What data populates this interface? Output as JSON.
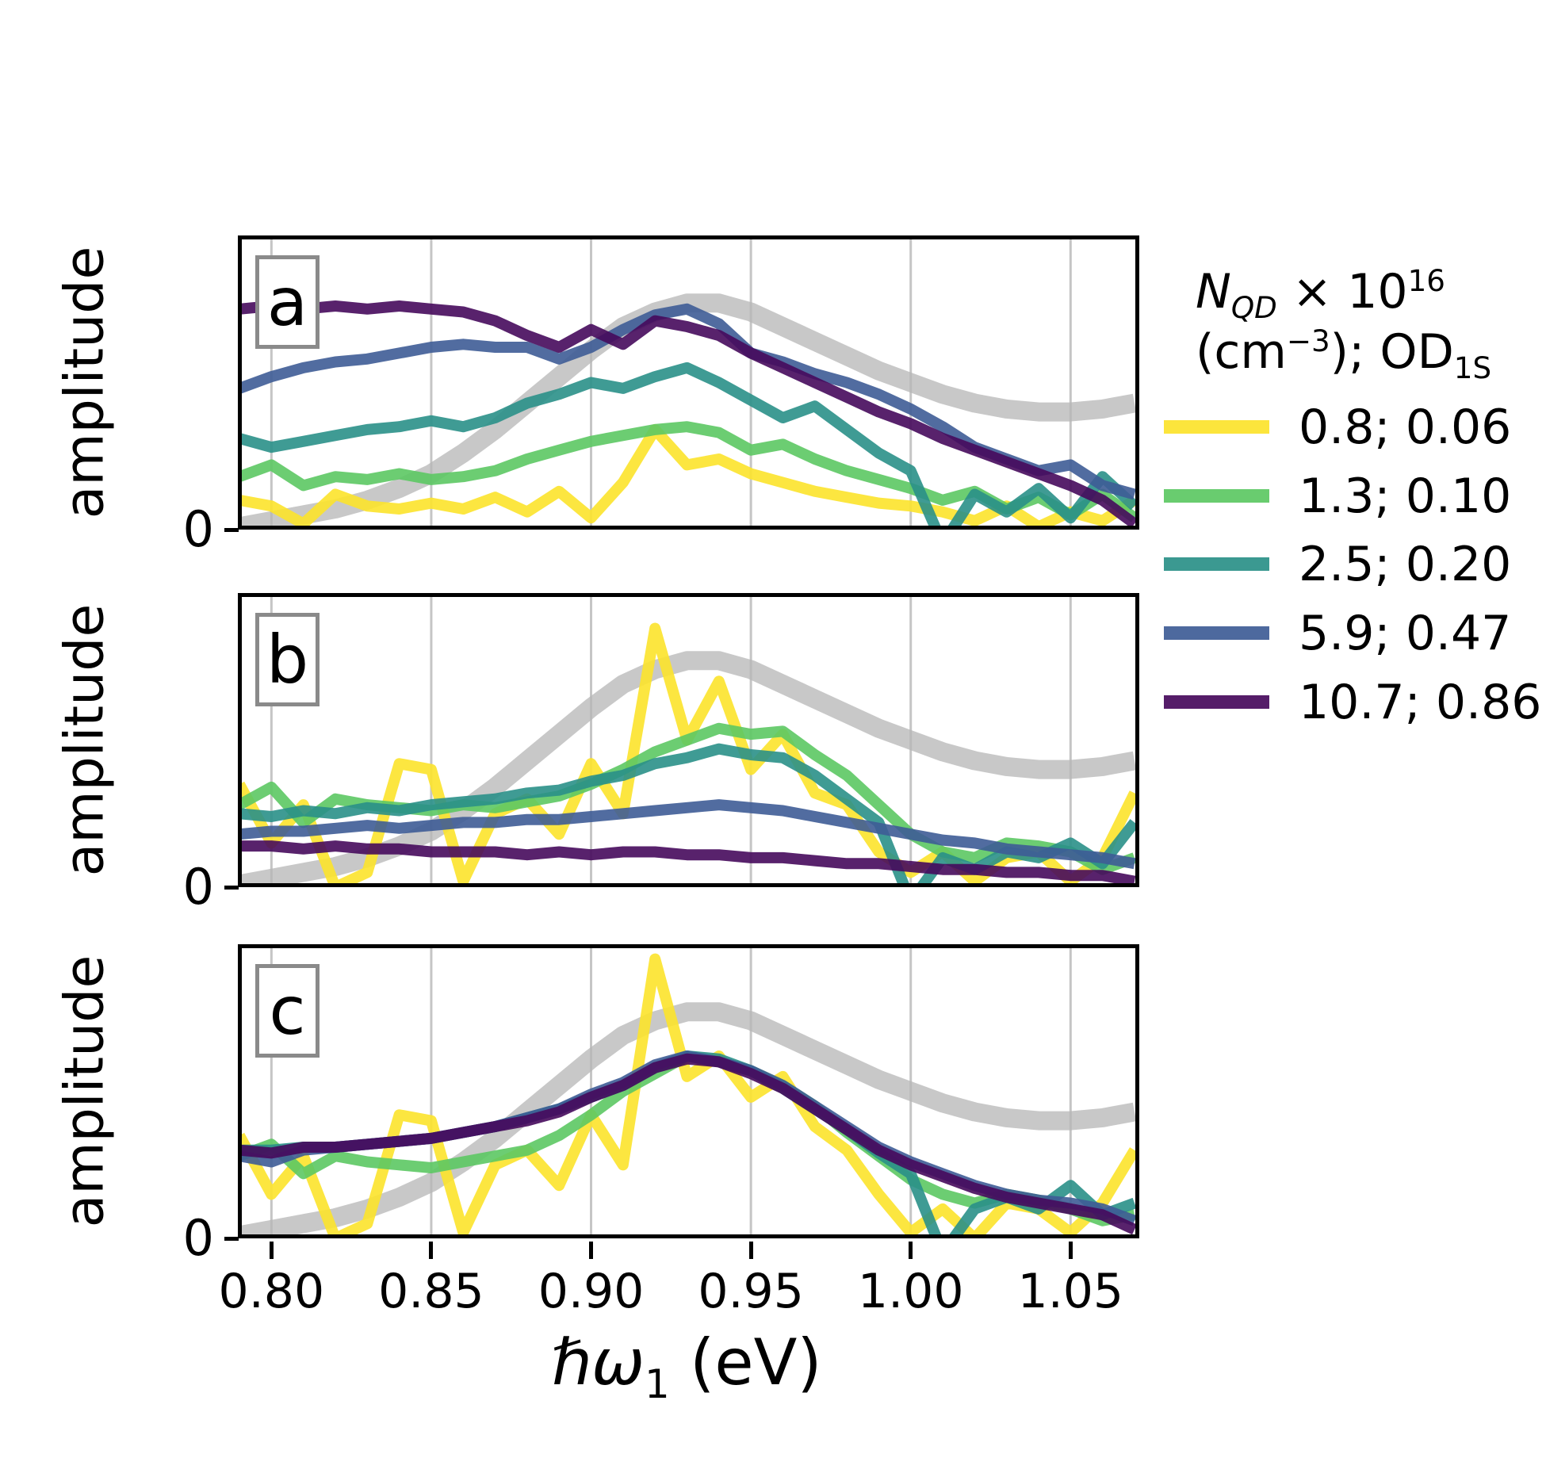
{
  "ylabel": "amplitude",
  "y_zero": "0",
  "xlabel_html": "<i>ℏω</i><sub>1</sub> (eV)",
  "x_ticks": {
    "values": [
      0.8,
      0.85,
      0.9,
      0.95,
      1.0,
      1.05
    ],
    "labels": [
      "0.80",
      "0.85",
      "0.90",
      "0.95",
      "1.00",
      "1.05"
    ]
  },
  "panels": [
    {
      "label": "a"
    },
    {
      "label": "b"
    },
    {
      "label": "c"
    }
  ],
  "legend": {
    "title_line1_html": "<i>N<sub>QD</sub></i> × 10<sup>16</sup>",
    "title_line2_html": "(cm<sup>−3</sup>); OD<sub>1S</sub>",
    "entries": [
      {
        "label": "0.8; 0.06",
        "series": "s1"
      },
      {
        "label": "1.3; 0.10",
        "series": "s2"
      },
      {
        "label": "2.5; 0.20",
        "series": "s3"
      },
      {
        "label": "5.9; 0.47",
        "series": "s4"
      },
      {
        "label": "10.7; 0.86",
        "series": "s5"
      }
    ]
  },
  "chart_data": {
    "type": "line",
    "title": "",
    "xlabel": "hbar*omega_1 (eV)",
    "ylabel": "amplitude (arb. units, 0 = axis, 1 = panel top)",
    "legend_title": "N_QD x 10^16 (cm^-3); OD_1S",
    "legend_position": "right of panel a",
    "grid": "vertical gridlines at x ticks only",
    "xlim": [
      0.7895,
      1.0715
    ],
    "ylim": [
      0,
      1.0
    ],
    "x": [
      0.79,
      0.8,
      0.81,
      0.82,
      0.83,
      0.84,
      0.85,
      0.86,
      0.87,
      0.88,
      0.89,
      0.9,
      0.91,
      0.92,
      0.93,
      0.94,
      0.95,
      0.96,
      0.97,
      0.98,
      0.99,
      1.0,
      1.01,
      1.02,
      1.03,
      1.04,
      1.05,
      1.06,
      1.07
    ],
    "series_meta": {
      "gray": {
        "name": "linear absorption reference band",
        "color": "#b5b5b5",
        "width": 24,
        "opacity": 0.75
      },
      "s1": {
        "name": "0.8; 0.06",
        "color": "#fce32b",
        "width": 14,
        "opacity": 0.9
      },
      "s2": {
        "name": "1.3; 0.10",
        "color": "#5cc863",
        "width": 14,
        "opacity": 0.9
      },
      "s3": {
        "name": "2.5; 0.20",
        "color": "#2a9088",
        "width": 14,
        "opacity": 0.9
      },
      "s4": {
        "name": "5.9; 0.47",
        "color": "#3e5c96",
        "width": 14,
        "opacity": 0.9
      },
      "s5": {
        "name": "10.7; 0.86",
        "color": "#460a5c",
        "width": 14,
        "opacity": 0.9
      }
    },
    "draw_order": [
      "gray",
      "s1",
      "s2",
      "s3",
      "s4",
      "s5"
    ],
    "panels": [
      {
        "label": "a",
        "series": {
          "gray": [
            0.01,
            0.03,
            0.05,
            0.07,
            0.1,
            0.14,
            0.19,
            0.26,
            0.34,
            0.43,
            0.52,
            0.61,
            0.69,
            0.74,
            0.77,
            0.77,
            0.74,
            0.69,
            0.64,
            0.59,
            0.54,
            0.5,
            0.46,
            0.43,
            0.41,
            0.4,
            0.4,
            0.41,
            0.43
          ],
          "s1": [
            0.1,
            0.08,
            0.02,
            0.12,
            0.08,
            0.07,
            0.09,
            0.07,
            0.11,
            0.06,
            0.13,
            0.04,
            0.16,
            0.34,
            0.22,
            0.24,
            0.19,
            0.16,
            0.13,
            0.11,
            0.09,
            0.08,
            0.06,
            0.03,
            0.08,
            0.01,
            0.06,
            0.03,
            0.1
          ],
          "s2": [
            0.18,
            0.22,
            0.15,
            0.18,
            0.17,
            0.19,
            0.17,
            0.18,
            0.2,
            0.24,
            0.27,
            0.3,
            0.32,
            0.34,
            0.35,
            0.33,
            0.27,
            0.29,
            0.24,
            0.2,
            0.17,
            0.14,
            0.1,
            0.13,
            0.07,
            0.11,
            0.05,
            0.12,
            0.04
          ],
          "s3": [
            0.31,
            0.28,
            0.3,
            0.32,
            0.34,
            0.35,
            0.37,
            0.35,
            0.38,
            0.43,
            0.46,
            0.5,
            0.48,
            0.52,
            0.55,
            0.5,
            0.44,
            0.38,
            0.42,
            0.34,
            0.26,
            0.2,
            -0.05,
            0.12,
            0.06,
            0.14,
            0.04,
            0.18,
            0.08
          ],
          "s4": [
            0.48,
            0.52,
            0.55,
            0.57,
            0.58,
            0.6,
            0.62,
            0.63,
            0.62,
            0.62,
            0.58,
            0.62,
            0.68,
            0.73,
            0.75,
            0.7,
            0.6,
            0.57,
            0.53,
            0.5,
            0.46,
            0.41,
            0.35,
            0.28,
            0.24,
            0.2,
            0.22,
            0.15,
            0.12
          ],
          "s5": [
            0.75,
            0.76,
            0.75,
            0.76,
            0.75,
            0.76,
            0.75,
            0.74,
            0.71,
            0.66,
            0.62,
            0.68,
            0.63,
            0.71,
            0.69,
            0.66,
            0.6,
            0.55,
            0.5,
            0.45,
            0.4,
            0.36,
            0.31,
            0.27,
            0.23,
            0.19,
            0.15,
            0.1,
            0.02
          ]
        }
      },
      {
        "label": "b",
        "series": {
          "gray": [
            0.01,
            0.03,
            0.05,
            0.07,
            0.1,
            0.14,
            0.19,
            0.26,
            0.34,
            0.43,
            0.52,
            0.61,
            0.69,
            0.74,
            0.77,
            0.77,
            0.74,
            0.69,
            0.64,
            0.59,
            0.54,
            0.5,
            0.46,
            0.43,
            0.41,
            0.4,
            0.4,
            0.41,
            0.43
          ],
          "s1": [
            0.35,
            0.15,
            0.28,
            0.0,
            0.05,
            0.42,
            0.4,
            0.02,
            0.25,
            0.3,
            0.18,
            0.42,
            0.25,
            0.88,
            0.5,
            0.7,
            0.4,
            0.52,
            0.32,
            0.28,
            0.12,
            0.05,
            0.12,
            0.02,
            0.1,
            0.12,
            0.02,
            0.1,
            0.32
          ],
          "s2": [
            0.28,
            0.34,
            0.22,
            0.3,
            0.28,
            0.27,
            0.26,
            0.28,
            0.27,
            0.29,
            0.31,
            0.35,
            0.4,
            0.46,
            0.5,
            0.54,
            0.52,
            0.53,
            0.45,
            0.38,
            0.28,
            0.18,
            0.12,
            0.1,
            0.15,
            0.14,
            0.12,
            0.06,
            0.1
          ],
          "s3": [
            0.25,
            0.24,
            0.26,
            0.25,
            0.27,
            0.26,
            0.28,
            0.29,
            0.3,
            0.32,
            0.33,
            0.36,
            0.38,
            0.42,
            0.44,
            0.47,
            0.45,
            0.44,
            0.38,
            0.3,
            0.22,
            -0.05,
            0.1,
            0.06,
            0.12,
            0.1,
            0.15,
            0.08,
            0.22
          ],
          "s4": [
            0.18,
            0.19,
            0.19,
            0.2,
            0.21,
            0.2,
            0.21,
            0.22,
            0.22,
            0.23,
            0.23,
            0.24,
            0.25,
            0.26,
            0.27,
            0.28,
            0.27,
            0.26,
            0.24,
            0.22,
            0.2,
            0.18,
            0.16,
            0.15,
            0.13,
            0.12,
            0.11,
            0.1,
            0.08
          ],
          "s5": [
            0.14,
            0.14,
            0.13,
            0.14,
            0.13,
            0.13,
            0.12,
            0.12,
            0.12,
            0.11,
            0.12,
            0.11,
            0.12,
            0.12,
            0.11,
            0.11,
            0.1,
            0.1,
            0.09,
            0.08,
            0.08,
            0.07,
            0.06,
            0.06,
            0.05,
            0.05,
            0.04,
            0.04,
            0.02
          ]
        }
      },
      {
        "label": "c",
        "series": {
          "gray": [
            0.01,
            0.03,
            0.05,
            0.07,
            0.1,
            0.14,
            0.19,
            0.26,
            0.34,
            0.43,
            0.52,
            0.61,
            0.69,
            0.74,
            0.77,
            0.77,
            0.74,
            0.69,
            0.64,
            0.59,
            0.54,
            0.5,
            0.46,
            0.43,
            0.41,
            0.4,
            0.4,
            0.41,
            0.43
          ],
          "s1": [
            0.35,
            0.15,
            0.28,
            0.0,
            0.05,
            0.42,
            0.4,
            0.02,
            0.25,
            0.3,
            0.18,
            0.42,
            0.25,
            0.95,
            0.55,
            0.62,
            0.48,
            0.55,
            0.38,
            0.3,
            0.15,
            0.02,
            0.1,
            0.0,
            0.12,
            0.1,
            0.02,
            0.12,
            0.3
          ],
          "s2": [
            0.28,
            0.32,
            0.22,
            0.28,
            0.26,
            0.25,
            0.24,
            0.26,
            0.28,
            0.3,
            0.35,
            0.42,
            0.5,
            0.56,
            0.62,
            0.6,
            0.57,
            0.52,
            0.45,
            0.36,
            0.28,
            0.2,
            0.15,
            0.12,
            0.15,
            0.13,
            0.1,
            0.06,
            0.08
          ],
          "s3": [
            0.3,
            0.3,
            0.31,
            0.31,
            0.32,
            0.33,
            0.34,
            0.36,
            0.38,
            0.41,
            0.44,
            0.48,
            0.52,
            0.58,
            0.62,
            0.61,
            0.57,
            0.51,
            0.44,
            0.37,
            0.29,
            0.22,
            -0.05,
            0.1,
            0.14,
            0.1,
            0.18,
            0.08,
            0.12
          ],
          "s4": [
            0.28,
            0.26,
            0.3,
            0.31,
            0.32,
            0.33,
            0.34,
            0.36,
            0.38,
            0.41,
            0.44,
            0.49,
            0.53,
            0.59,
            0.62,
            0.6,
            0.57,
            0.52,
            0.45,
            0.38,
            0.31,
            0.26,
            0.22,
            0.18,
            0.15,
            0.13,
            0.12,
            0.1,
            0.06
          ],
          "s5": [
            0.3,
            0.29,
            0.31,
            0.31,
            0.32,
            0.33,
            0.34,
            0.36,
            0.38,
            0.4,
            0.43,
            0.48,
            0.52,
            0.58,
            0.61,
            0.6,
            0.56,
            0.51,
            0.44,
            0.37,
            0.3,
            0.25,
            0.21,
            0.17,
            0.14,
            0.12,
            0.1,
            0.08,
            0.03
          ]
        }
      }
    ]
  }
}
